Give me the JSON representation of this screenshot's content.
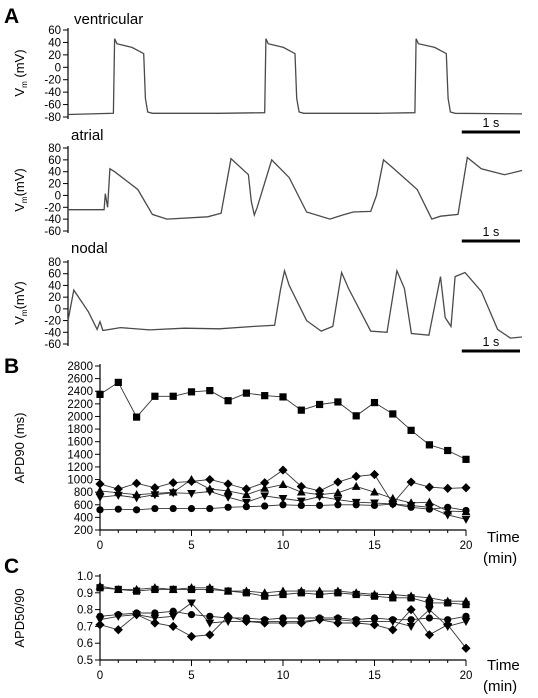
{
  "panel_letters": {
    "A": "A",
    "B": "B",
    "C": "C"
  },
  "trace_panels": [
    {
      "title": "ventricular",
      "ylabel_main": "V",
      "ylabel_sub": "m",
      "ylabel_unit": " (mV)",
      "yticks": [
        60,
        40,
        20,
        0,
        -20,
        -40,
        -60,
        -80
      ],
      "ylim": [
        -80,
        60
      ],
      "scale_bar_label": "1 s"
    },
    {
      "title": "atrial",
      "ylabel_main": "V",
      "ylabel_sub": "m",
      "ylabel_unit": "(mV)",
      "yticks": [
        80,
        60,
        40,
        20,
        0,
        -20,
        -40,
        -60
      ],
      "ylim": [
        -60,
        80
      ],
      "scale_bar_label": "1 s"
    },
    {
      "title": "nodal",
      "ylabel_main": "V",
      "ylabel_sub": "m",
      "ylabel_unit": "(mV)",
      "yticks": [
        80,
        60,
        40,
        20,
        0,
        -20,
        -40,
        -60
      ],
      "ylim": [
        -60,
        80
      ],
      "scale_bar_label": "1 s"
    }
  ],
  "chart_data": [
    {
      "type": "line",
      "name": "ventricular action potential trace",
      "xlabel": "",
      "ylabel": "Vm (mV)",
      "ylim": [
        -80,
        60
      ],
      "grid": false,
      "x": [
        0,
        0.78,
        0.8,
        0.84,
        1.1,
        1.3,
        1.33,
        1.37,
        1.45,
        2.6,
        3.38,
        3.4,
        3.44,
        3.7,
        3.9,
        3.93,
        3.97,
        4.05,
        5.3,
        5.96,
        5.98,
        6.02,
        6.3,
        6.5,
        6.53,
        6.57,
        6.65,
        7.8
      ],
      "y": [
        -76,
        -74,
        46,
        38,
        32,
        22,
        -50,
        -72,
        -74,
        -74,
        -73,
        46,
        38,
        32,
        22,
        -50,
        -72,
        -74,
        -74,
        -73,
        46,
        38,
        32,
        22,
        -50,
        -72,
        -74,
        -75
      ]
    },
    {
      "type": "line",
      "name": "atrial action potential trace",
      "xlabel": "",
      "ylabel": "Vm (mV)",
      "ylim": [
        -60,
        80
      ],
      "grid": false,
      "x": [
        0,
        0.62,
        0.64,
        0.68,
        0.72,
        0.8,
        1.2,
        1.45,
        1.7,
        2.4,
        2.63,
        2.8,
        3.1,
        3.15,
        3.2,
        3.25,
        3.5,
        3.8,
        4.1,
        4.5,
        4.72,
        4.9,
        5.2,
        5.3,
        5.42,
        5.6,
        6.0,
        6.2,
        6.25,
        6.4,
        6.7,
        6.86,
        7.1,
        7.5,
        7.8
      ],
      "y": [
        -24,
        -24,
        3,
        -20,
        45,
        40,
        10,
        -32,
        -40,
        -36,
        -30,
        62,
        35,
        -10,
        -33,
        -20,
        60,
        30,
        -28,
        -40,
        -33,
        -28,
        -27,
        0,
        60,
        45,
        10,
        -30,
        -40,
        -35,
        -32,
        64,
        45,
        35,
        42
      ]
    },
    {
      "type": "line",
      "name": "nodal action potential trace",
      "xlabel": "",
      "ylabel": "Vm (mV)",
      "ylim": [
        -60,
        80
      ],
      "grid": false,
      "x": [
        0,
        0.1,
        0.35,
        0.5,
        0.55,
        0.6,
        0.9,
        1.4,
        2.0,
        2.6,
        3.2,
        3.55,
        3.65,
        3.72,
        3.8,
        4.1,
        4.35,
        4.55,
        4.7,
        4.82,
        5.2,
        5.48,
        5.65,
        5.78,
        5.9,
        6.2,
        6.4,
        6.48,
        6.58,
        6.65,
        6.82,
        7.1,
        7.38,
        7.6,
        7.8
      ],
      "y": [
        -20,
        32,
        -5,
        -35,
        -22,
        -37,
        -32,
        -36,
        -33,
        -34,
        -30,
        -28,
        32,
        65,
        40,
        -20,
        -38,
        -30,
        62,
        35,
        -38,
        -40,
        65,
        35,
        -42,
        -45,
        55,
        -15,
        -30,
        55,
        62,
        30,
        -35,
        -50,
        -48
      ]
    },
    {
      "type": "line",
      "name": "APD90 over time",
      "xlabel": "Time (min)",
      "ylabel": "APD90 (ms)",
      "xlim": [
        0,
        20
      ],
      "ylim": [
        200,
        2800
      ],
      "xticks": [
        0,
        5,
        10,
        15,
        20
      ],
      "yticks": [
        200,
        400,
        600,
        800,
        1000,
        1200,
        1400,
        1600,
        1800,
        2000,
        2200,
        2400,
        2600,
        2800
      ],
      "grid": false,
      "x": [
        0,
        1,
        2,
        3,
        4,
        5,
        6,
        7,
        8,
        9,
        10,
        11,
        12,
        13,
        14,
        15,
        16,
        17,
        18,
        19,
        20
      ],
      "series": [
        {
          "marker": "square",
          "values": [
            2350,
            2540,
            1990,
            2320,
            2320,
            2390,
            2410,
            2250,
            2370,
            2330,
            2310,
            2100,
            2190,
            2230,
            2010,
            2220,
            2040,
            1780,
            1550,
            1460,
            1320
          ]
        },
        {
          "marker": "diamond",
          "values": [
            930,
            850,
            940,
            870,
            950,
            970,
            1000,
            930,
            850,
            950,
            1150,
            890,
            820,
            960,
            1050,
            1080,
            620,
            960,
            880,
            860,
            870
          ]
        },
        {
          "marker": "triangle-up",
          "values": [
            820,
            790,
            760,
            780,
            800,
            1000,
            850,
            820,
            760,
            860,
            920,
            800,
            760,
            790,
            890,
            800,
            700,
            630,
            640,
            500,
            490
          ]
        },
        {
          "marker": "triangle-down",
          "values": [
            720,
            750,
            710,
            760,
            790,
            780,
            810,
            720,
            640,
            740,
            700,
            660,
            730,
            680,
            640,
            630,
            610,
            590,
            560,
            440,
            370
          ]
        },
        {
          "marker": "circle",
          "values": [
            520,
            530,
            520,
            540,
            540,
            540,
            540,
            560,
            570,
            580,
            600,
            590,
            590,
            600,
            600,
            590,
            610,
            560,
            530,
            560,
            510
          ]
        }
      ]
    },
    {
      "type": "line",
      "name": "APD50/90 over time",
      "xlabel": "Time (min)",
      "ylabel": "APD50/90",
      "xlim": [
        0,
        20
      ],
      "ylim": [
        0.5,
        1.0
      ],
      "xticks": [
        0,
        5,
        10,
        15,
        20
      ],
      "yticks": [
        0.5,
        0.6,
        0.7,
        0.8,
        0.9,
        1.0
      ],
      "grid": false,
      "x": [
        0,
        1,
        2,
        3,
        4,
        5,
        6,
        7,
        8,
        9,
        10,
        11,
        12,
        13,
        14,
        15,
        16,
        17,
        18,
        19,
        20
      ],
      "series": [
        {
          "marker": "square",
          "values": [
            0.93,
            0.92,
            0.91,
            0.92,
            0.92,
            0.92,
            0.92,
            0.91,
            0.9,
            0.88,
            0.89,
            0.9,
            0.89,
            0.9,
            0.89,
            0.88,
            0.87,
            0.87,
            0.84,
            0.84,
            0.83
          ]
        },
        {
          "marker": "triangle-up",
          "values": [
            0.94,
            0.92,
            0.92,
            0.93,
            0.92,
            0.93,
            0.93,
            0.91,
            0.91,
            0.9,
            0.91,
            0.91,
            0.91,
            0.91,
            0.9,
            0.89,
            0.89,
            0.88,
            0.87,
            0.85,
            0.85
          ]
        },
        {
          "marker": "circle",
          "values": [
            0.76,
            0.77,
            0.78,
            0.78,
            0.79,
            0.77,
            0.76,
            0.75,
            0.75,
            0.74,
            0.75,
            0.75,
            0.75,
            0.75,
            0.74,
            0.75,
            0.74,
            0.74,
            0.75,
            0.74,
            0.76
          ]
        },
        {
          "marker": "triangle-down",
          "values": [
            0.74,
            0.76,
            0.77,
            0.75,
            0.76,
            0.84,
            0.72,
            0.73,
            0.73,
            0.73,
            0.73,
            0.73,
            0.74,
            0.74,
            0.73,
            0.73,
            0.73,
            0.7,
            0.8,
            0.7,
            0.73
          ]
        },
        {
          "marker": "diamond",
          "values": [
            0.71,
            0.68,
            0.77,
            0.72,
            0.7,
            0.64,
            0.65,
            0.76,
            0.73,
            0.72,
            0.72,
            0.72,
            0.74,
            0.72,
            0.72,
            0.71,
            0.68,
            0.8,
            0.65,
            0.71,
            0.57
          ]
        }
      ]
    }
  ],
  "panelB": {
    "ylabel": "APD90 (ms)",
    "xlabel_line1": "Time",
    "xlabel_line2": "(min)"
  },
  "panelC": {
    "ylabel": "APD50/90",
    "xlabel_line1": "Time",
    "xlabel_line2": "(min)"
  }
}
